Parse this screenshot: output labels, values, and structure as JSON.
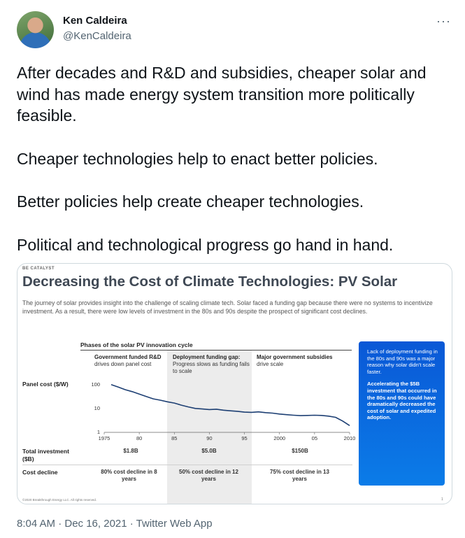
{
  "tweet": {
    "author_name": "Ken Caldeira",
    "author_handle": "@KenCaldeira",
    "more_icon": "···",
    "paragraphs": [
      "After decades and R&D and subsidies, cheaper solar and wind has made energy system transition more politically feasible.",
      "Cheaper technologies help to enact better policies.",
      "Better policies help create cheaper technologies.",
      "Political and technological progress go hand in hand."
    ],
    "timestamp": "8:04 AM · Dec 16, 2021 · Twitter Web App"
  },
  "infographic": {
    "brand": "BE CATALYST",
    "title": "Decreasing the Cost of Climate Technologies: PV Solar",
    "description": "The journey of solar provides insight into the challenge of scaling climate tech. Solar faced a funding gap because there were no systems to incentivize investment. As a result, there were low levels of investment in the 80s and 90s despite the prospect of significant cost declines.",
    "phases_title": "Phases of the solar PV innovation cycle",
    "phases": [
      {
        "heading": "Government funded R&D",
        "sub": "drives down panel cost"
      },
      {
        "heading": "Deployment funding gap:",
        "sub": "Progress slows as funding fails to scale"
      },
      {
        "heading": "Major government subsidies",
        "sub": "drive scale"
      }
    ],
    "panel_cost_label": "Panel cost ($/W)",
    "total_investment_label": "Total investment ($B)",
    "total_investment": [
      "$1.8B",
      "$5.0B",
      "$150B"
    ],
    "cost_decline_label": "Cost decline",
    "cost_decline": [
      "80% cost decline in 8 years",
      "50% cost decline in 12 years",
      "75% cost decline in 13 years"
    ],
    "callout_1": "Lack of deployment funding in the 80s and 90s was a major reason why solar didn't scale faster.",
    "callout_2": "Accelerating the $5B investment that occurred in the 80s and 90s could have dramatically decreased the cost of solar and expedited adoption.",
    "footer": "©2020 Breakthrough Energy LLC. All rights reserved.",
    "page_number": "1"
  },
  "chart_data": {
    "type": "line",
    "title": "",
    "xlabel": "",
    "ylabel": "Panel cost ($/W)",
    "y_scale": "log",
    "ylim": [
      1,
      100
    ],
    "xlim": [
      1975,
      2010
    ],
    "y_ticks": [
      "100",
      "10",
      "1"
    ],
    "x_ticks": [
      "1975",
      "80",
      "85",
      "90",
      "95",
      "2000",
      "05",
      "2010"
    ],
    "x_tick_years": [
      1975,
      1980,
      1985,
      1990,
      1995,
      2000,
      2005,
      2010
    ],
    "series": [
      {
        "x": [
          1976,
          1977,
          1978,
          1979,
          1980,
          1981,
          1982,
          1983,
          1984,
          1985,
          1986,
          1987,
          1988,
          1989,
          1990,
          1991,
          1992,
          1993,
          1994,
          1995,
          1996,
          1997,
          1998,
          1999,
          2000,
          2001,
          2002,
          2003,
          2004,
          2005,
          2006,
          2007,
          2008,
          2009,
          2010
        ],
        "y": [
          95,
          75,
          58,
          48,
          38,
          30,
          24,
          21,
          18,
          16,
          13,
          11,
          9.5,
          9,
          8.5,
          8.8,
          8,
          7.5,
          7.2,
          6.6,
          6.5,
          6.8,
          6.3,
          6.0,
          5.5,
          5.2,
          4.9,
          4.7,
          4.8,
          4.9,
          4.8,
          4.5,
          4.0,
          2.8,
          1.8
        ]
      }
    ]
  }
}
